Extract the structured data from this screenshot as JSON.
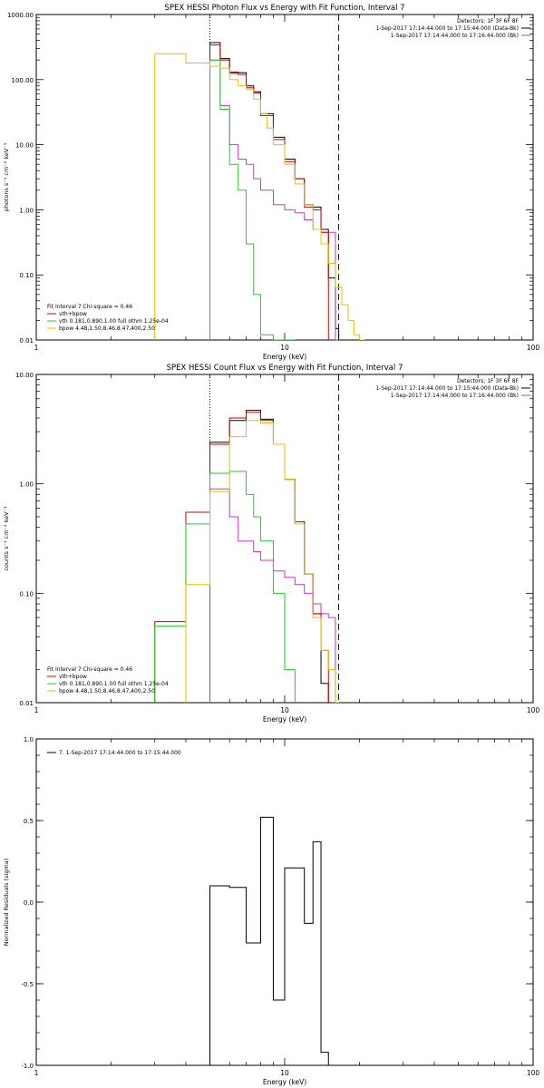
{
  "colors": {
    "data": "#000000",
    "bk": "#cc33cc",
    "total": "#cc0000",
    "vth": "#22cc22",
    "bpow": "#e6c000"
  },
  "chart_data": [
    {
      "type": "line",
      "title": "SPEX HESSI Photon Flux vs Energy with Fit Function, Interval 7",
      "xlabel": "Energy (keV)",
      "ylabel": "photons s⁻¹ cm⁻² keV⁻¹",
      "xscale": "log",
      "yscale": "log",
      "xlim": [
        1,
        100
      ],
      "ylim": [
        0.01,
        1000
      ],
      "xticks": [
        {
          "v": 1,
          "label": "1"
        },
        {
          "v": 10,
          "label": "10"
        },
        {
          "v": 100,
          "label": "100"
        }
      ],
      "yticks": [
        {
          "v": 0.01,
          "label": "0.01"
        },
        {
          "v": 0.1,
          "label": "0.10"
        },
        {
          "v": 1,
          "label": "1.00"
        },
        {
          "v": 10,
          "label": "10.00"
        },
        {
          "v": 100,
          "label": "100.00"
        },
        {
          "v": 1000,
          "label": "1000.00"
        }
      ],
      "vlines": [
        {
          "x": 5.0,
          "style": "dotted"
        },
        {
          "x": 16.5,
          "style": "dashed"
        }
      ],
      "info": [
        "Detectors: 1F 3F 6F 8F",
        "1-Sep-2017 17:14:44.000 to 17:15:44.000 (Data-Bk)",
        "1-Sep-2017 17:14:44.000 to 17:16:44.000 (Bk)"
      ],
      "info_colors": [
        "#000000",
        "#000000",
        "#cc33cc"
      ],
      "fit_title": "Fit Interval 7   Chi-square = 0.46",
      "legend": [
        {
          "label": "vth+bpow",
          "color": "#cc0000"
        },
        {
          "label": "vth 0.181,0.890,1.00  full othm 1.25e-04",
          "color": "#22cc22"
        },
        {
          "label": "bpow 4.48,1.50,8.46,8.47,400,2.50",
          "color": "#e6c000"
        }
      ],
      "series": [
        {
          "name": "Data-Bk",
          "color": "#000000",
          "edges": [
            5.0,
            5.5,
            6.0,
            6.5,
            7.0,
            7.5,
            8.0,
            8.5,
            9.0,
            10.0,
            11.0,
            12.0,
            13.0,
            14.0,
            15.0,
            16.0,
            16.5
          ],
          "values": [
            370,
            210,
            130,
            128,
            80,
            65,
            30,
            30,
            13,
            6,
            3,
            1.2,
            1.1,
            0.5,
            0.09,
            0.015
          ]
        },
        {
          "name": "Bk",
          "color": "#cc33cc",
          "edges": [
            5.0,
            5.5,
            6.0,
            6.5,
            7.0,
            7.5,
            8.0,
            9.0,
            10.0,
            11.0,
            12.0,
            13.0,
            14.0,
            15.0,
            16.0,
            16.5
          ],
          "values": [
            200,
            40,
            10,
            6,
            5,
            3,
            2,
            1.2,
            1.0,
            0.9,
            0.7,
            0.5,
            0.45,
            0.45,
            0.01
          ]
        },
        {
          "name": "vth+bpow",
          "color": "#cc0000",
          "edges": [
            5.0,
            5.5,
            6.0,
            6.5,
            7.0,
            7.5,
            8.0,
            8.5,
            9.0,
            10.0,
            11.0,
            12.0,
            13.0,
            14.0,
            15.0
          ],
          "values": [
            340,
            200,
            125,
            120,
            75,
            62,
            28,
            28,
            12,
            5.5,
            3,
            1.1,
            1.0,
            0.45
          ]
        },
        {
          "name": "vth",
          "color": "#22cc22",
          "edges": [
            5.0,
            5.5,
            6.0,
            6.5,
            7.0,
            7.5,
            8.0,
            9.0,
            10.0,
            11.0
          ],
          "values": [
            200,
            35,
            5,
            2,
            0.3,
            0.05,
            0.012,
            0.01,
            0.01
          ]
        },
        {
          "name": "bpow",
          "color": "#e6c000",
          "edges": [
            3.0,
            4.0,
            5.0,
            5.5,
            6.0,
            6.5,
            7.0,
            7.5,
            8.0,
            8.5,
            9.0,
            10.0,
            11.0,
            12.0,
            13.0,
            14.0,
            15.0,
            16.0,
            17.0,
            18.0,
            19.0,
            20.0,
            21.0
          ],
          "values": [
            250,
            180,
            160,
            150,
            100,
            80,
            70,
            50,
            30,
            18,
            10,
            5,
            2.5,
            1.2,
            0.5,
            0.3,
            0.15,
            0.065,
            0.035,
            0.02,
            0.012,
            0.01
          ]
        }
      ]
    },
    {
      "type": "line",
      "title": "SPEX HESSI Count Flux vs Energy with Fit Function, Interval 7",
      "xlabel": "Energy (keV)",
      "ylabel": "counts s⁻¹ cm⁻² keV⁻¹",
      "xscale": "log",
      "yscale": "log",
      "xlim": [
        1,
        100
      ],
      "ylim": [
        0.01,
        10
      ],
      "xticks": [
        {
          "v": 1,
          "label": "1"
        },
        {
          "v": 10,
          "label": "10"
        },
        {
          "v": 100,
          "label": "100"
        }
      ],
      "yticks": [
        {
          "v": 0.01,
          "label": "0.01"
        },
        {
          "v": 0.1,
          "label": "0.10"
        },
        {
          "v": 1,
          "label": "1.00"
        },
        {
          "v": 10,
          "label": "10.00"
        }
      ],
      "vlines": [
        {
          "x": 5.0,
          "style": "dotted"
        },
        {
          "x": 16.5,
          "style": "dashed"
        }
      ],
      "info": [
        "Detectors: 1F 3F 6F 8F",
        "1-Sep-2017 17:14:44.000 to 17:15:44.000 (Data-Bk)",
        "1-Sep-2017 17:14:44.000 to 17:16:44.000 (Bk)"
      ],
      "info_colors": [
        "#000000",
        "#000000",
        "#cc33cc"
      ],
      "fit_title": "Fit Interval 7   Chi-square = 0.46",
      "legend": [
        {
          "label": "vth+bpow",
          "color": "#cc0000"
        },
        {
          "label": "vth 0.181,0.890,1.00  full othm 1.25e-04",
          "color": "#22cc22"
        },
        {
          "label": "bpow 4.48,1.50,8.46,8.47,400,2.50",
          "color": "#e6c000"
        }
      ],
      "series": [
        {
          "name": "Data-Bk",
          "color": "#000000",
          "edges": [
            5.0,
            5.5,
            6.0,
            6.5,
            7.0,
            7.5,
            8.0,
            8.5,
            9.0,
            10.0,
            11.0,
            12.0,
            13.0,
            14.0,
            15.0,
            16.0,
            16.5
          ],
          "values": [
            2.4,
            2.4,
            3.8,
            3.8,
            4.7,
            4.7,
            3.9,
            3.9,
            2.3,
            1.1,
            0.45,
            0.15,
            0.065,
            0.015,
            0.01,
            0.01
          ]
        },
        {
          "name": "Bk",
          "color": "#cc33cc",
          "edges": [
            5.0,
            5.5,
            6.0,
            6.5,
            7.0,
            7.5,
            8.0,
            9.0,
            10.0,
            11.0,
            12.0,
            13.0,
            14.0,
            15.0,
            16.0,
            16.5
          ],
          "values": [
            0.9,
            0.9,
            0.5,
            0.3,
            0.3,
            0.24,
            0.2,
            0.16,
            0.14,
            0.12,
            0.1,
            0.08,
            0.065,
            0.06,
            0.01
          ]
        },
        {
          "name": "vth+bpow",
          "color": "#cc0000",
          "edges": [
            3.0,
            4.0,
            5.0,
            5.5,
            6.0,
            6.5,
            7.0,
            7.5,
            8.0,
            8.5,
            9.0,
            10.0,
            11.0,
            12.0,
            13.0,
            14.0,
            15.0
          ],
          "values": [
            0.055,
            0.55,
            2.3,
            2.3,
            4.0,
            4.0,
            4.5,
            4.5,
            3.8,
            3.8,
            2.3,
            1.1,
            0.45,
            0.15,
            0.065,
            0.03
          ]
        },
        {
          "name": "vth",
          "color": "#22cc22",
          "edges": [
            3.0,
            4.0,
            5.0,
            5.5,
            6.0,
            6.5,
            7.0,
            7.5,
            8.0,
            9.0,
            10.0,
            11.0
          ],
          "values": [
            0.05,
            0.43,
            1.25,
            1.25,
            1.3,
            1.3,
            0.8,
            0.5,
            0.3,
            0.1,
            0.02
          ]
        },
        {
          "name": "bpow",
          "color": "#e6c000",
          "edges": [
            4.0,
            5.0,
            5.5,
            6.0,
            6.5,
            7.0,
            7.5,
            8.0,
            8.5,
            9.0,
            10.0,
            11.0,
            12.0,
            13.0,
            14.0,
            15.0,
            16.0,
            16.5
          ],
          "values": [
            0.12,
            0.85,
            0.85,
            2.7,
            2.7,
            3.8,
            3.8,
            3.6,
            3.6,
            2.3,
            1.1,
            0.43,
            0.15,
            0.06,
            0.03,
            0.02,
            0.01
          ]
        }
      ]
    },
    {
      "type": "line",
      "title": "",
      "xlabel": "Energy (keV)",
      "ylabel": "Normalized Residuals (sigma)",
      "xscale": "log",
      "yscale": "linear",
      "xlim": [
        1,
        100
      ],
      "ylim": [
        -1.0,
        1.0
      ],
      "xticks": [
        {
          "v": 1,
          "label": "1"
        },
        {
          "v": 10,
          "label": "10"
        },
        {
          "v": 100,
          "label": "100"
        }
      ],
      "yticks": [
        {
          "v": -1.0,
          "label": "-1.0"
        },
        {
          "v": -0.5,
          "label": "-0.5"
        },
        {
          "v": 0,
          "label": "0.0"
        },
        {
          "v": 0.5,
          "label": "0.5"
        },
        {
          "v": 1.0,
          "label": "1.0"
        }
      ],
      "vlines": [],
      "info": [],
      "info_colors": [],
      "fit_title": "",
      "legend": [
        {
          "label": "7.  1-Sep-2017 17:14:44.000 to 17:15:44.000",
          "color": "#000000"
        }
      ],
      "series": [
        {
          "name": "",
          "color": "#000000",
          "edges": [
            5.0,
            6.0,
            7.0,
            8.0,
            9.0,
            10.0,
            11.0,
            12.0,
            13.0,
            14.0,
            15.0,
            16.0,
            16.5
          ],
          "values": [
            0.1,
            0.09,
            -0.25,
            0.52,
            -0.6,
            0.21,
            0.21,
            -0.13,
            0.37,
            -0.92,
            -1.0,
            -1.0
          ],
          "start_from": -1.0
        }
      ]
    }
  ]
}
